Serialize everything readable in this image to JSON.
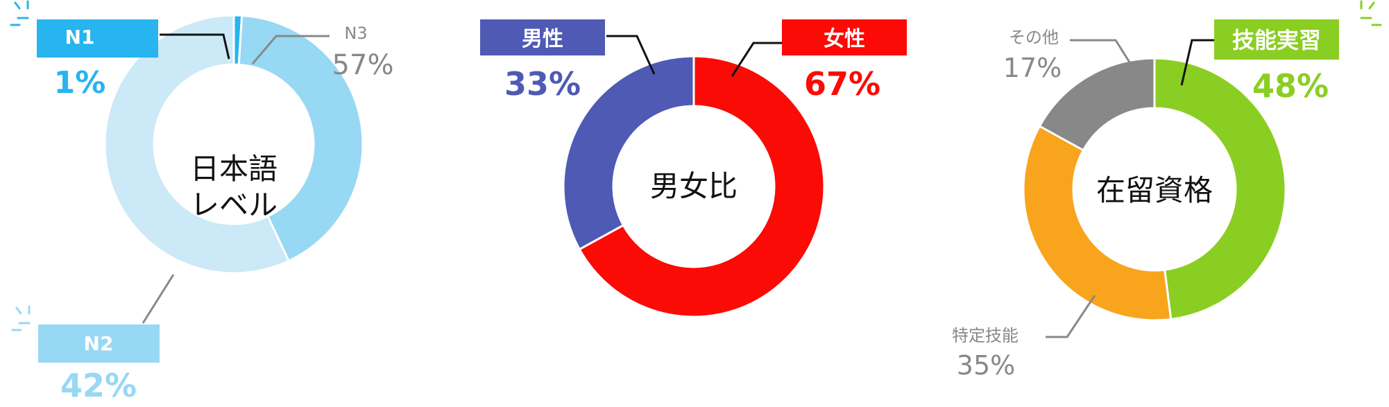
{
  "chart_data": [
    {
      "type": "pie",
      "title": "日本語レベル",
      "title_lines": [
        "日本語",
        "レベル"
      ],
      "categories": [
        "N1",
        "N2",
        "N3"
      ],
      "values": [
        1,
        42,
        57
      ],
      "value_labels": [
        "1%",
        "42%",
        "57%"
      ],
      "colors": [
        "#27b4ef",
        "#97d8f4",
        "#cbe9f7"
      ],
      "label_styles": [
        "tag",
        "tag",
        "plain"
      ],
      "highlight": [
        "N1",
        "N2"
      ]
    },
    {
      "type": "pie",
      "title": "男女比",
      "title_lines": [
        "男女比"
      ],
      "categories": [
        "女性",
        "男性"
      ],
      "values": [
        67,
        33
      ],
      "value_labels": [
        "67%",
        "33%"
      ],
      "colors": [
        "#fc0a06",
        "#4f5ab4"
      ],
      "label_styles": [
        "tag",
        "tag"
      ],
      "highlight": []
    },
    {
      "type": "pie",
      "title": "在留資格",
      "title_lines": [
        "在留資格"
      ],
      "categories": [
        "技能実習",
        "特定技能",
        "その他"
      ],
      "values": [
        48,
        35,
        17
      ],
      "value_labels": [
        "48%",
        "35%",
        "17%"
      ],
      "colors": [
        "#8bce23",
        "#f9a41d",
        "#888888"
      ],
      "label_styles": [
        "tag",
        "plain",
        "plain"
      ],
      "highlight": [
        "技能実習"
      ]
    }
  ],
  "colors": {
    "leader_dark": "#111111",
    "leader_gray": "#888888",
    "plain_label": "#888888",
    "white": "#ffffff"
  }
}
